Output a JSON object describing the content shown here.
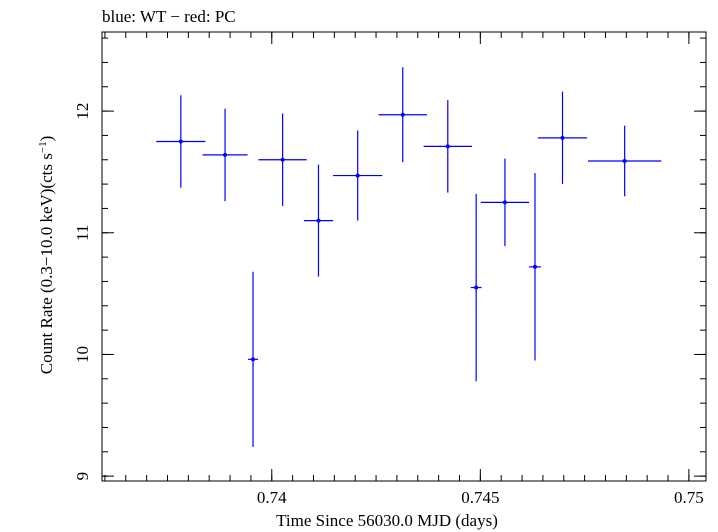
{
  "header_text": "blue: WT − red: PC",
  "chart_data": {
    "type": "scatter",
    "xlabel": "Time Since 56030.0 MJD (days)",
    "ylabel_main": "Count Rate (0.3−10.0 keV)(cts s",
    "ylabel_sup": "−1",
    "ylabel_close": ")",
    "xlim": [
      0.73593,
      0.75041
    ],
    "ylim": [
      8.96,
      12.65
    ],
    "x_ticks": [
      0.74,
      0.745,
      0.75
    ],
    "x_tick_labels": [
      "0.74",
      "0.745",
      "0.75"
    ],
    "x_minor_step": 0.0005,
    "y_ticks": [
      9,
      10,
      11,
      12
    ],
    "y_tick_labels": [
      "9",
      "10",
      "11",
      "12"
    ],
    "y_minor_step": 0.2,
    "grid": false,
    "series": [
      {
        "color": "#0000ff",
        "points": [
          {
            "x": 0.73782,
            "y": 11.75,
            "xerr": 0.00059,
            "yerr": 0.38
          },
          {
            "x": 0.73888,
            "y": 11.64,
            "xerr": 0.00054,
            "yerr": 0.38
          },
          {
            "x": 0.73955,
            "y": 9.96,
            "xerr": 0.00012,
            "yerr": 0.72
          },
          {
            "x": 0.74026,
            "y": 11.6,
            "xerr": 0.00058,
            "yerr": 0.38
          },
          {
            "x": 0.74112,
            "y": 11.1,
            "xerr": 0.00035,
            "yerr": 0.46
          },
          {
            "x": 0.74206,
            "y": 11.47,
            "xerr": 0.00059,
            "yerr": 0.37
          },
          {
            "x": 0.74314,
            "y": 11.97,
            "xerr": 0.00058,
            "yerr": 0.39
          },
          {
            "x": 0.74422,
            "y": 11.71,
            "xerr": 0.00058,
            "yerr": 0.38
          },
          {
            "x": 0.7449,
            "y": 10.55,
            "xerr": 0.00013,
            "yerr": 0.77
          },
          {
            "x": 0.74559,
            "y": 11.25,
            "xerr": 0.00058,
            "yerr": 0.36
          },
          {
            "x": 0.74631,
            "y": 10.72,
            "xerr": 0.00014,
            "yerr": 0.77
          },
          {
            "x": 0.74697,
            "y": 11.78,
            "xerr": 0.00059,
            "yerr": 0.38
          },
          {
            "x": 0.74846,
            "y": 11.59,
            "xerr": 0.00088,
            "yerr": 0.29
          }
        ]
      }
    ]
  }
}
